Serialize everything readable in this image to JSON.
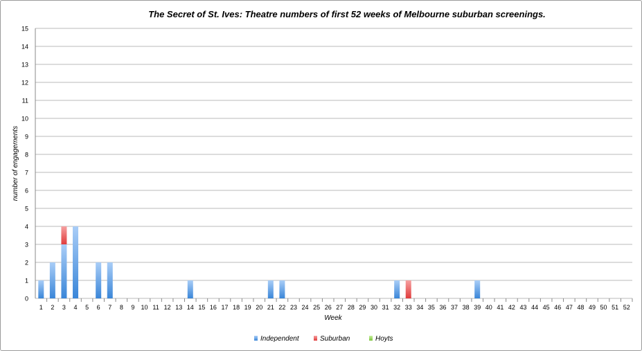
{
  "chart_data": {
    "type": "bar",
    "stacked": true,
    "title": "The Secret of St. Ives: Theatre numbers of first 52 weeks of Melbourne suburban screenings.",
    "xlabel": "Week",
    "ylabel": "number of engagements",
    "ylim": [
      0,
      15
    ],
    "yticks": [
      0,
      1,
      2,
      3,
      4,
      5,
      6,
      7,
      8,
      9,
      10,
      11,
      12,
      13,
      14,
      15
    ],
    "grid": true,
    "legend_position": "bottom",
    "categories": [
      "1",
      "2",
      "3",
      "4",
      "5",
      "6",
      "7",
      "8",
      "9",
      "10",
      "11",
      "12",
      "13",
      "14",
      "15",
      "16",
      "17",
      "18",
      "19",
      "20",
      "21",
      "22",
      "23",
      "24",
      "25",
      "26",
      "27",
      "28",
      "29",
      "30",
      "31",
      "32",
      "33",
      "34",
      "35",
      "36",
      "37",
      "38",
      "39",
      "40",
      "41",
      "42",
      "43",
      "44",
      "45",
      "46",
      "47",
      "48",
      "49",
      "50",
      "51",
      "52"
    ],
    "series": [
      {
        "name": "Independent",
        "color": "#4a90d9",
        "values": [
          1,
          2,
          3,
          4,
          0,
          2,
          2,
          0,
          0,
          0,
          0,
          0,
          0,
          1,
          0,
          0,
          0,
          0,
          0,
          0,
          1,
          1,
          0,
          0,
          0,
          0,
          0,
          0,
          0,
          0,
          0,
          1,
          0,
          0,
          0,
          0,
          0,
          0,
          1,
          0,
          0,
          0,
          0,
          0,
          0,
          0,
          0,
          0,
          0,
          0,
          0,
          0
        ]
      },
      {
        "name": "Suburban",
        "color": "#e84a4a",
        "values": [
          0,
          0,
          1,
          0,
          0,
          0,
          0,
          0,
          0,
          0,
          0,
          0,
          0,
          0,
          0,
          0,
          0,
          0,
          0,
          0,
          0,
          0,
          0,
          0,
          0,
          0,
          0,
          0,
          0,
          0,
          0,
          0,
          1,
          0,
          0,
          0,
          0,
          0,
          0,
          0,
          0,
          0,
          0,
          0,
          0,
          0,
          0,
          0,
          0,
          0,
          0,
          0
        ]
      },
      {
        "name": "Hoyts",
        "color": "#8fd14f",
        "values": [
          0,
          0,
          0,
          0,
          0,
          0,
          0,
          0,
          0,
          0,
          0,
          0,
          0,
          0,
          0,
          0,
          0,
          0,
          0,
          0,
          0,
          0,
          0,
          0,
          0,
          0,
          0,
          0,
          0,
          0,
          0,
          0,
          0,
          0,
          0,
          0,
          0,
          0,
          0,
          0,
          0,
          0,
          0,
          0,
          0,
          0,
          0,
          0,
          0,
          0,
          0,
          0
        ]
      }
    ]
  }
}
